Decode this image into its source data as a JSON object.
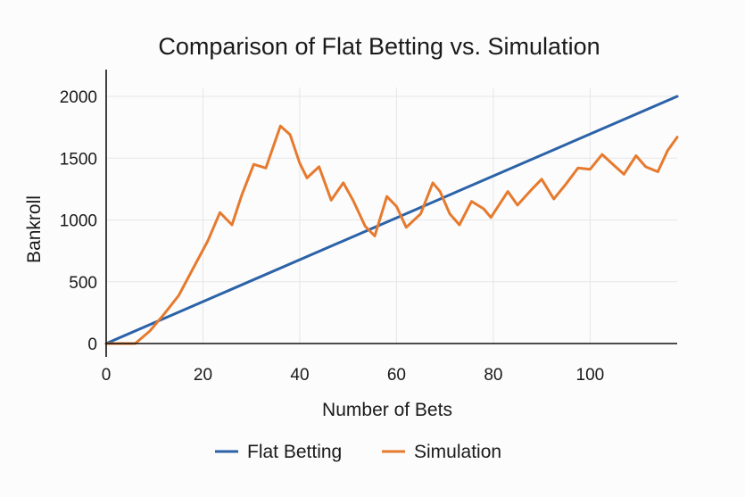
{
  "chart_data": {
    "type": "line",
    "title": "Comparison of Flat Betting vs. Simulation",
    "xlabel": "Number of Bets",
    "ylabel": "Bankroll",
    "xlim": [
      0,
      118
    ],
    "ylim": [
      0,
      2000
    ],
    "xticks": [
      0,
      20,
      40,
      60,
      80,
      100
    ],
    "yticks": [
      0,
      500,
      1000,
      1500,
      2000
    ],
    "grid": true,
    "legend_position": "bottom",
    "series": [
      {
        "name": "Flat Betting",
        "color": "#2b62a8",
        "x": [
          0,
          118
        ],
        "y": [
          0,
          2000
        ]
      },
      {
        "name": "Simulation",
        "color": "#e67a2e",
        "x": [
          0,
          3,
          6,
          9,
          12,
          15,
          18,
          21,
          23.5,
          26,
          28,
          30.5,
          33,
          36,
          38,
          40,
          41.5,
          44,
          46.5,
          49,
          51,
          53.5,
          55.5,
          58,
          60,
          62,
          65,
          67.5,
          69,
          71,
          73,
          75.5,
          78,
          79.5,
          83,
          85,
          88,
          90,
          92.5,
          95,
          97.5,
          100,
          102.5,
          105,
          107,
          109.5,
          111.5,
          114,
          116,
          118
        ],
        "y": [
          0,
          0,
          0,
          100,
          240,
          390,
          610,
          830,
          1060,
          960,
          1200,
          1450,
          1420,
          1760,
          1690,
          1460,
          1340,
          1430,
          1160,
          1300,
          1160,
          950,
          870,
          1190,
          1110,
          940,
          1050,
          1300,
          1230,
          1050,
          960,
          1150,
          1090,
          1020,
          1230,
          1120,
          1250,
          1330,
          1170,
          1290,
          1420,
          1410,
          1530,
          1440,
          1370,
          1520,
          1430,
          1390,
          1560,
          1670
        ]
      }
    ]
  }
}
